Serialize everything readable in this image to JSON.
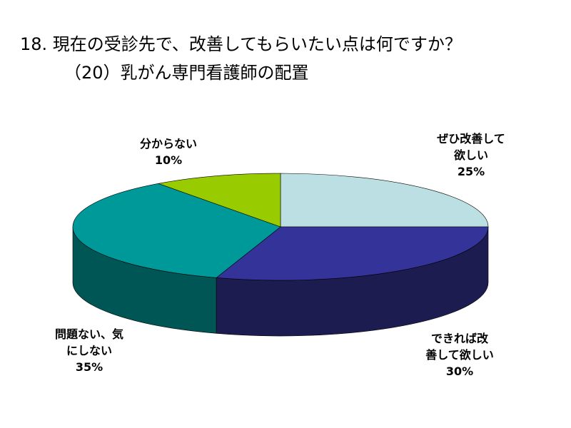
{
  "title_line1": "18. 現在の受診先で、改善してもらいたい点は何ですか？",
  "title_line2": "（20）乳がん専門看護師の配置",
  "chart_data": {
    "type": "pie",
    "slices": [
      {
        "label_lines": [
          "ぜひ改善して",
          "欲しい"
        ],
        "percent_text": "25%",
        "value": 25,
        "color": "#BBDFE2",
        "side_color": "#8FB3B6"
      },
      {
        "label_lines": [
          "できれば改",
          "善して欲しい"
        ],
        "percent_text": "30%",
        "value": 30,
        "color": "#333399",
        "side_color": "#1C1C50"
      },
      {
        "label_lines": [
          "問題ない、気",
          "にしない"
        ],
        "percent_text": "35%",
        "value": 35,
        "color": "#009999",
        "side_color": "#005555"
      },
      {
        "label_lines": [
          "分からない"
        ],
        "percent_text": "10%",
        "value": 10,
        "color": "#99CC00",
        "side_color": "#5C7A00"
      }
    ]
  }
}
